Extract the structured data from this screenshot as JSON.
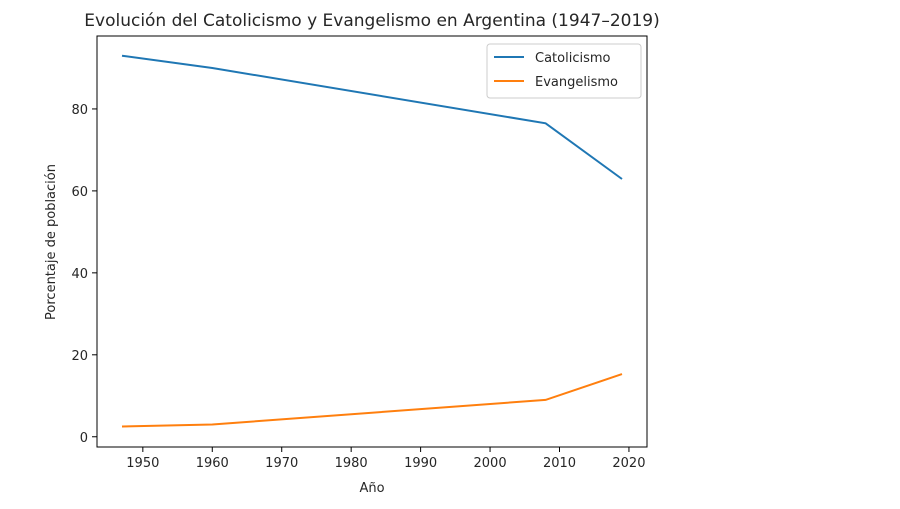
{
  "chart_data": {
    "type": "line",
    "title": "Evolución del Catolicismo y Evangelismo en Argentina (1947–2019)",
    "xlabel": "Año",
    "ylabel": "Porcentaje de población",
    "x": [
      1947,
      1960,
      2008,
      2019
    ],
    "series": [
      {
        "name": "Catolicismo",
        "values": [
          93,
          90,
          76.5,
          62.9
        ],
        "color": "#1f77b4"
      },
      {
        "name": "Evangelismo",
        "values": [
          2.5,
          3,
          9,
          15.3
        ],
        "color": "#ff7f0e"
      }
    ],
    "xlim": [
      1943.4,
      2022.6
    ],
    "ylim": [
      -2.5,
      97.8
    ],
    "xticks": [
      "1950",
      "1960",
      "1970",
      "1980",
      "1990",
      "2000",
      "2010",
      "2020"
    ],
    "yticks": [
      "0",
      "20",
      "40",
      "60",
      "80"
    ],
    "grid": false,
    "legend": "top-right"
  }
}
